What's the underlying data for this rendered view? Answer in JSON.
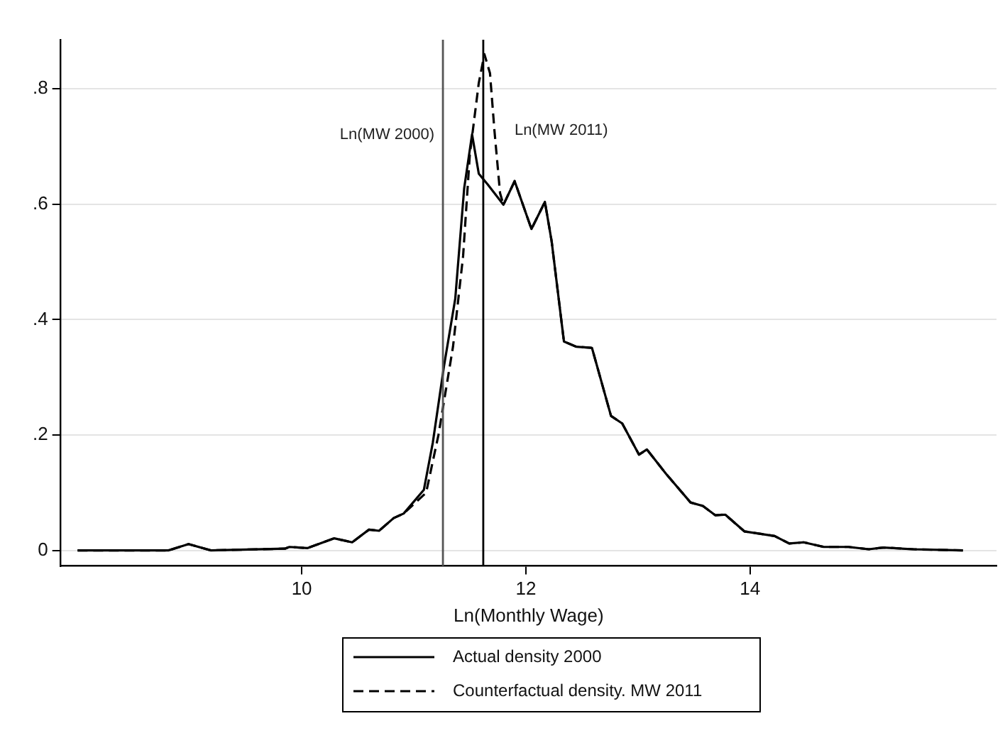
{
  "chart_data": {
    "type": "line",
    "xlabel": "Ln(Monthly Wage)",
    "xlim": [
      7.85,
      16.2
    ],
    "xticks": [
      10,
      12,
      14
    ],
    "ylim": [
      -0.027,
      0.885
    ],
    "yticks": [
      {
        "value": 0,
        "label": "0"
      },
      {
        "value": 0.2,
        "label": ".2"
      },
      {
        "value": 0.4,
        "label": ".4"
      },
      {
        "value": 0.6,
        "label": ".6"
      },
      {
        "value": 0.8,
        "label": ".8"
      }
    ],
    "grid": "y",
    "legend": "bottom",
    "marker": "none",
    "ref_lines": [
      {
        "axis": "x",
        "value": 11.26,
        "label": "Ln(MW 2000)",
        "color": "#555555"
      },
      {
        "axis": "x",
        "value": 11.62,
        "label": "Ln(MW 2011)",
        "color": "#000000"
      }
    ],
    "series": [
      {
        "name": "Actual density 2000",
        "color": "#000000",
        "line_style": "solid",
        "x": [
          8.0,
          8.81,
          8.99,
          9.19,
          9.85,
          9.89,
          10.05,
          10.29,
          10.45,
          10.6,
          10.69,
          10.82,
          10.91,
          11.09,
          11.17,
          11.27,
          11.37,
          11.45,
          11.52,
          11.58,
          11.66,
          11.8,
          11.9,
          12.05,
          12.17,
          12.23,
          12.34,
          12.45,
          12.59,
          12.76,
          12.86,
          13.01,
          13.08,
          13.25,
          13.47,
          13.58,
          13.69,
          13.78,
          13.95,
          14.22,
          14.35,
          14.48,
          14.66,
          14.88,
          15.06,
          15.19,
          15.46,
          15.9
        ],
        "values": [
          0,
          0,
          0.011,
          0,
          0.003,
          0.006,
          0.004,
          0.021,
          0.014,
          0.036,
          0.034,
          0.056,
          0.064,
          0.105,
          0.187,
          0.32,
          0.436,
          0.628,
          0.721,
          0.653,
          0.634,
          0.599,
          0.64,
          0.557,
          0.604,
          0.536,
          0.362,
          0.353,
          0.351,
          0.233,
          0.22,
          0.166,
          0.175,
          0.133,
          0.083,
          0.077,
          0.061,
          0.062,
          0.033,
          0.025,
          0.012,
          0.014,
          0.006,
          0.006,
          0.002,
          0.005,
          0.002,
          0
        ]
      },
      {
        "name": "Counterfactual density. MW 2011",
        "color": "#000000",
        "line_style": "dashed",
        "x": [
          8.0,
          8.81,
          8.99,
          9.19,
          9.85,
          9.89,
          10.05,
          10.29,
          10.45,
          10.6,
          10.69,
          10.82,
          10.91,
          11.11,
          11.22,
          11.35,
          11.44,
          11.5,
          11.58,
          11.63,
          11.68,
          11.72,
          11.77,
          11.8,
          11.9,
          12.05,
          12.17,
          12.23,
          12.34,
          12.45,
          12.59,
          12.76,
          12.86,
          13.01,
          13.08,
          13.25,
          13.47,
          13.58,
          13.69,
          13.78,
          13.95,
          14.22,
          14.35,
          14.48,
          14.66,
          14.88,
          15.06,
          15.19,
          15.46,
          15.9
        ],
        "values": [
          0,
          0,
          0.011,
          0,
          0.003,
          0.006,
          0.004,
          0.021,
          0.014,
          0.036,
          0.034,
          0.056,
          0.064,
          0.1,
          0.2,
          0.353,
          0.51,
          0.686,
          0.81,
          0.86,
          0.827,
          0.727,
          0.619,
          0.599,
          0.64,
          0.557,
          0.604,
          0.536,
          0.362,
          0.353,
          0.351,
          0.233,
          0.22,
          0.166,
          0.175,
          0.133,
          0.083,
          0.077,
          0.061,
          0.062,
          0.033,
          0.025,
          0.012,
          0.014,
          0.006,
          0.006,
          0.002,
          0.005,
          0.002,
          0
        ]
      }
    ]
  }
}
